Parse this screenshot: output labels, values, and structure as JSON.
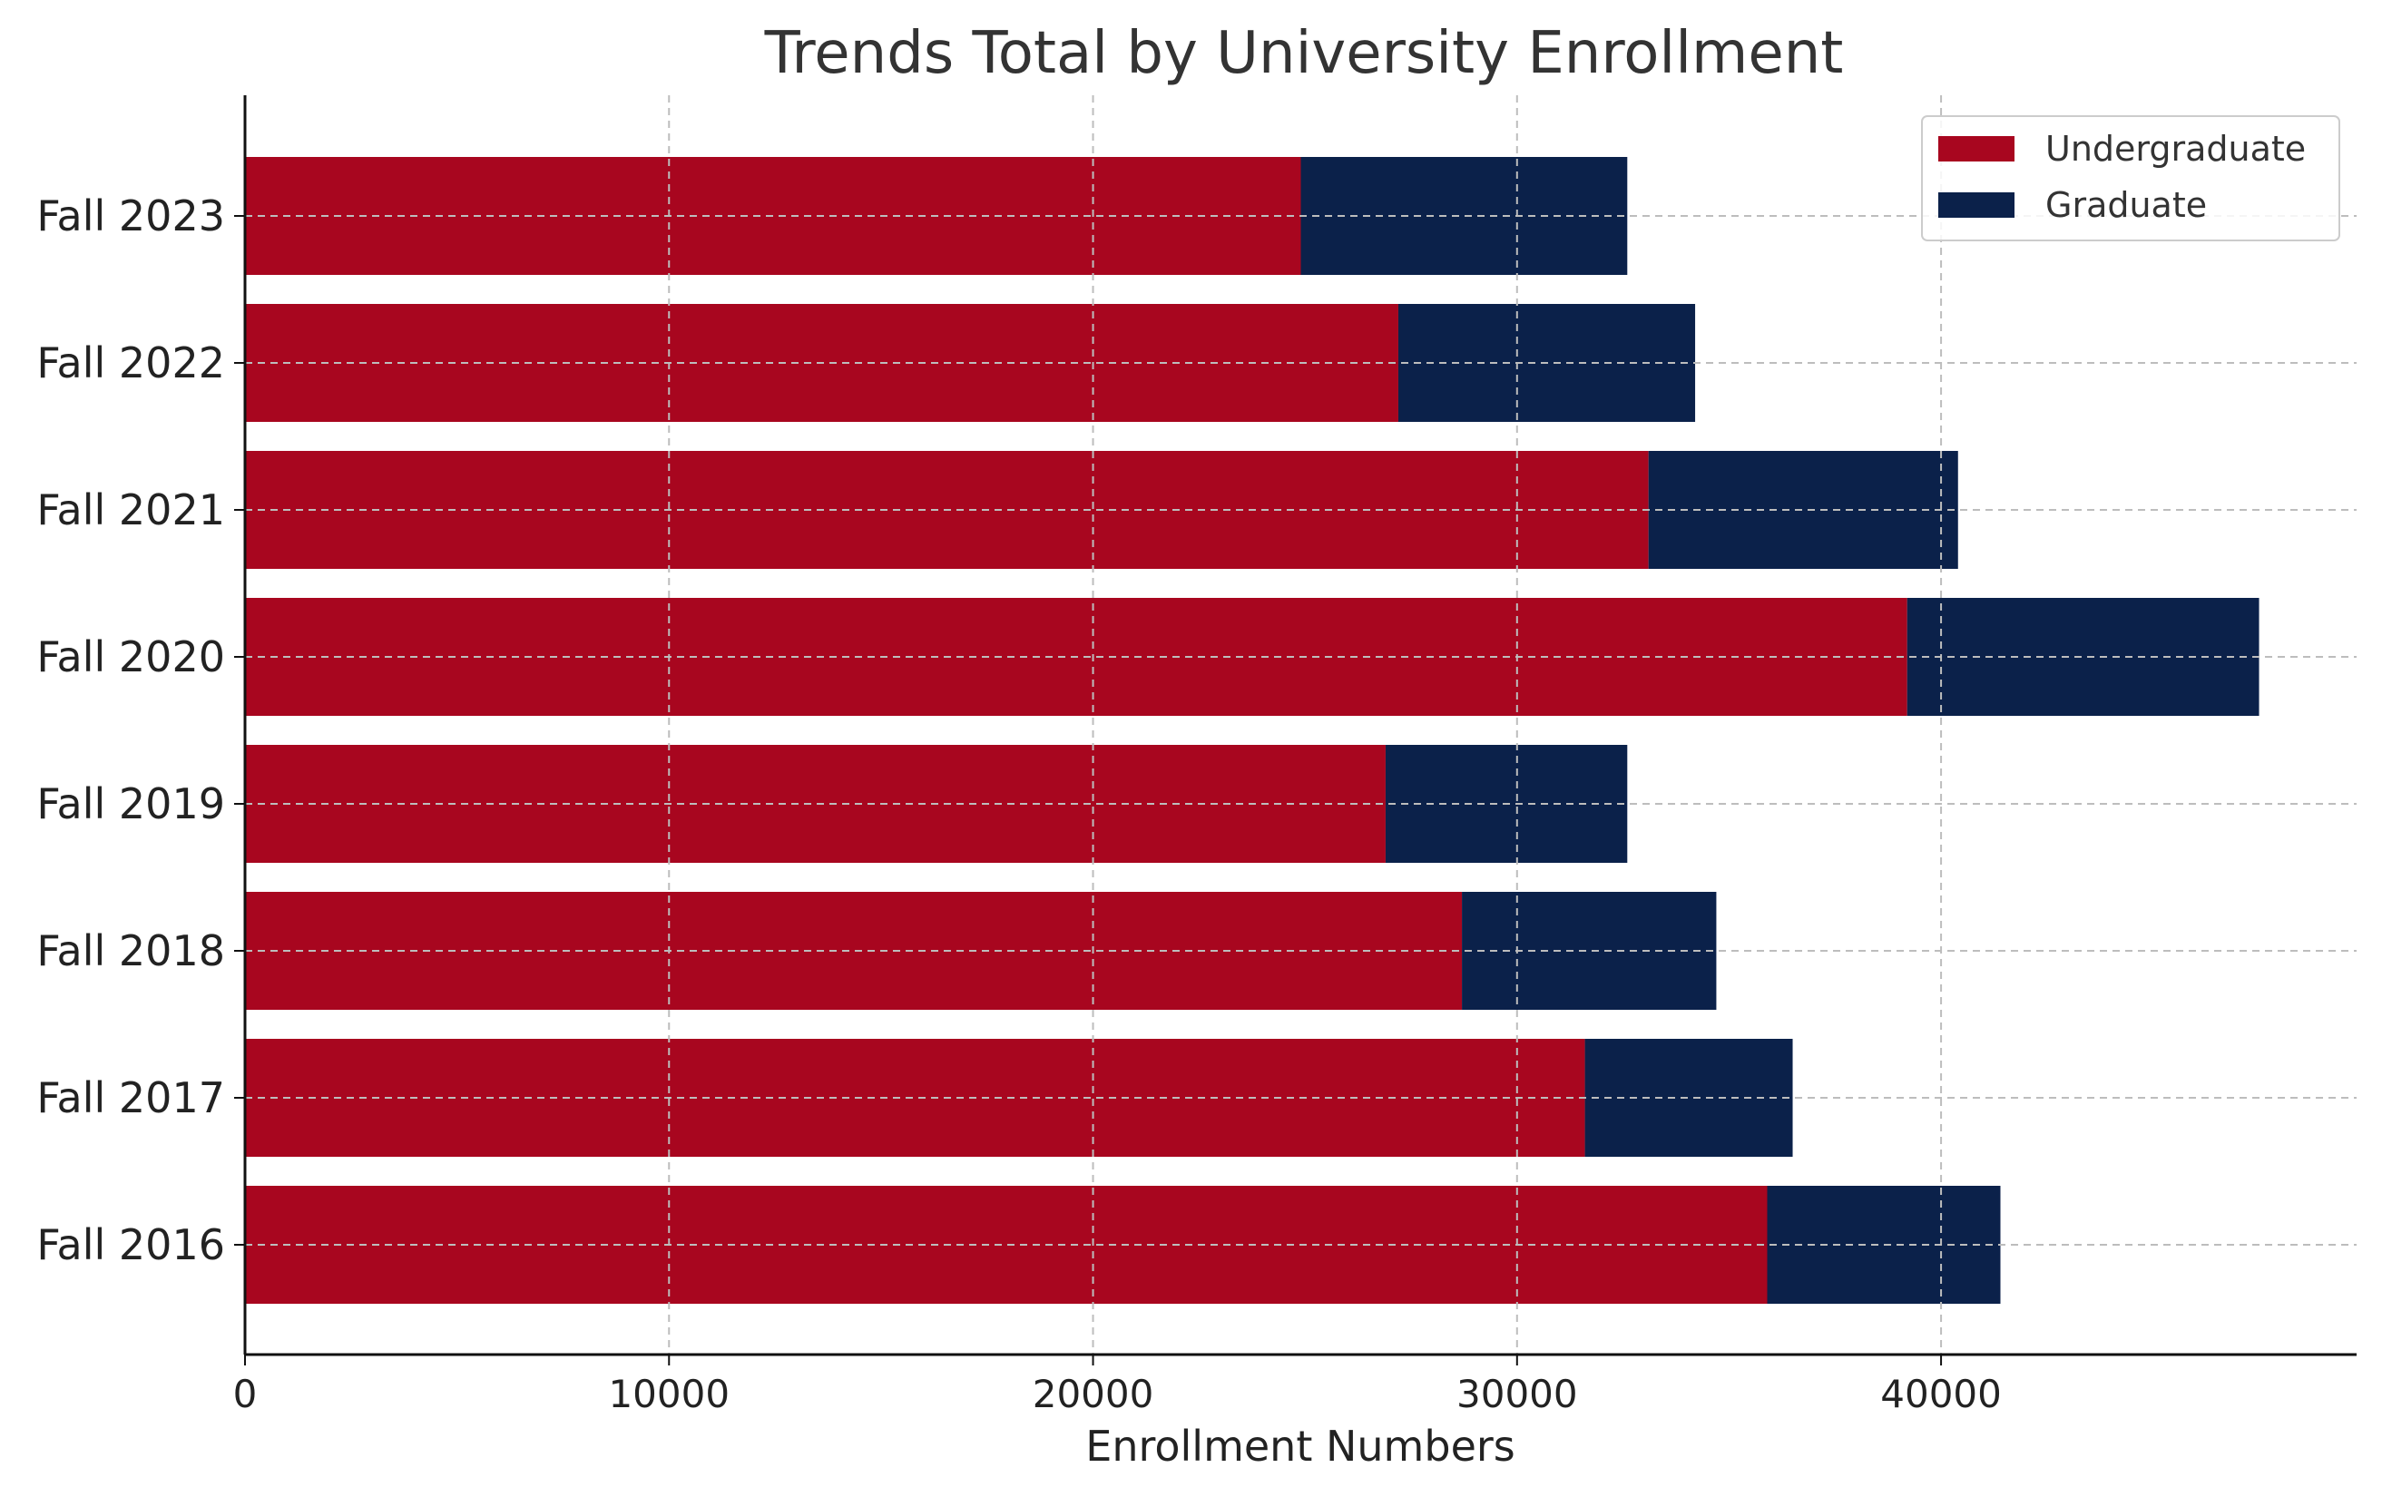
{
  "colors": {
    "undergraduate": "#A8061F",
    "graduate": "#0B214A",
    "grid": "#bdbdbd",
    "axis": "#111111"
  },
  "chart_data": {
    "type": "bar",
    "orientation": "horizontal",
    "stacked": true,
    "title": "Trends Total by University Enrollment",
    "xlabel": "Enrollment Numbers",
    "ylabel": "",
    "categories": [
      "Fall 2016",
      "Fall 2017",
      "Fall 2018",
      "Fall 2019",
      "Fall 2020",
      "Fall 2021",
      "Fall 2022",
      "Fall 2023"
    ],
    "series": [
      {
        "name": "Undergraduate",
        "values": [
          35900,
          31600,
          28700,
          26900,
          39200,
          33100,
          27200,
          24900
        ]
      },
      {
        "name": "Graduate",
        "values": [
          5500,
          4900,
          6000,
          5700,
          8300,
          7300,
          7000,
          7700
        ]
      }
    ],
    "xlim": [
      0,
      49800
    ],
    "xticks": [
      0,
      10000,
      20000,
      30000,
      40000
    ],
    "xtick_labels": [
      "0",
      "10000",
      "20000",
      "30000",
      "40000"
    ],
    "grid": true,
    "legend_position": "top-right"
  }
}
